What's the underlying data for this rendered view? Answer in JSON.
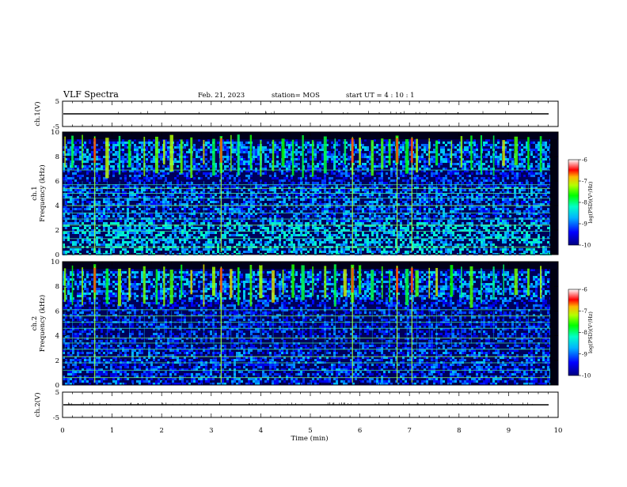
{
  "header": {
    "title": "VLF Spectra",
    "date": "Feb. 21, 2023",
    "station": "station= MOS",
    "start": "start  UT =   4 : 10 : 1"
  },
  "chart_data": [
    {
      "type": "line",
      "name": "ch1-waveform",
      "ylabel": "ch.1(V)",
      "ylim": [
        -5,
        5
      ],
      "yticks": [
        "5",
        "-5"
      ],
      "xlim": [
        0,
        10
      ],
      "level": 0
    },
    {
      "type": "heatmap",
      "name": "ch1-spectrogram",
      "ylabel": "ch.1",
      "ylabel2": "Frequency (kHz)",
      "ylim": [
        0,
        10
      ],
      "yticks": [
        "0",
        "2",
        "4",
        "6",
        "8",
        "10"
      ],
      "xlim": [
        0,
        10
      ],
      "colorbar": {
        "ticks": [
          "-6",
          "-7",
          "-8",
          "-9",
          "-10"
        ],
        "title": "log(PSD)(V²/Hz)",
        "range": [
          -10,
          -6
        ]
      },
      "tone_lines_khz": [
        0.6,
        1.3,
        1.9,
        2.4,
        2.9,
        3.4,
        4.0,
        4.6,
        5.0,
        5.4,
        5.7,
        6.9
      ],
      "burst_times_min": [
        0.05,
        0.2,
        0.4,
        0.65,
        0.9,
        1.15,
        1.35,
        1.65,
        1.9,
        2.05,
        2.2,
        2.4,
        2.6,
        2.85,
        3.05,
        3.2,
        3.4,
        3.55,
        3.8,
        4.0,
        4.25,
        4.45,
        4.65,
        4.85,
        5.05,
        5.3,
        5.5,
        5.7,
        5.85,
        6.0,
        6.25,
        6.45,
        6.6,
        6.75,
        6.95,
        7.15,
        7.4,
        7.55,
        7.85,
        8.05,
        8.25,
        8.45,
        8.7,
        8.9,
        9.15,
        9.4,
        9.65
      ],
      "strong_burst_times_min": [
        0.65,
        3.2,
        5.85,
        6.75,
        7.05
      ]
    },
    {
      "type": "heatmap",
      "name": "ch2-spectrogram",
      "ylabel": "ch.2",
      "ylabel2": "Frequency (kHz)",
      "ylim": [
        0,
        10
      ],
      "yticks": [
        "0",
        "2",
        "4",
        "6",
        "8",
        "10"
      ],
      "xlim": [
        0,
        10
      ],
      "colorbar": {
        "ticks": [
          "-6",
          "-7",
          "-8",
          "-9",
          "-10"
        ],
        "title": "log(PSD)(V²/Hz)",
        "range": [
          -10,
          -6
        ]
      },
      "tone_lines_khz": [
        0.6,
        1.2,
        1.8,
        2.3,
        2.9,
        3.4,
        3.8,
        4.6,
        5.1,
        5.6,
        6.1
      ],
      "burst_times_min": [
        0.05,
        0.2,
        0.4,
        0.65,
        0.9,
        1.15,
        1.35,
        1.65,
        1.9,
        2.05,
        2.2,
        2.4,
        2.6,
        2.85,
        3.05,
        3.2,
        3.4,
        3.55,
        3.8,
        4.0,
        4.25,
        4.45,
        4.65,
        4.85,
        5.05,
        5.3,
        5.5,
        5.7,
        5.85,
        6.0,
        6.25,
        6.45,
        6.6,
        6.75,
        6.95,
        7.15,
        7.4,
        7.55,
        7.85,
        8.05,
        8.25,
        8.45,
        8.7,
        8.9,
        9.15,
        9.4,
        9.65
      ],
      "strong_burst_times_min": [
        0.65,
        3.2,
        5.85,
        6.75,
        7.05
      ]
    },
    {
      "type": "line",
      "name": "ch2-waveform",
      "ylabel": "ch.2(V)",
      "ylim": [
        -5,
        5
      ],
      "yticks": [
        "5",
        "-5"
      ],
      "xlim": [
        0,
        10
      ],
      "xlabel": "Time (min)",
      "xticks": [
        "0",
        "1",
        "2",
        "3",
        "4",
        "5",
        "6",
        "7",
        "8",
        "9",
        "10"
      ],
      "level": 0
    }
  ]
}
